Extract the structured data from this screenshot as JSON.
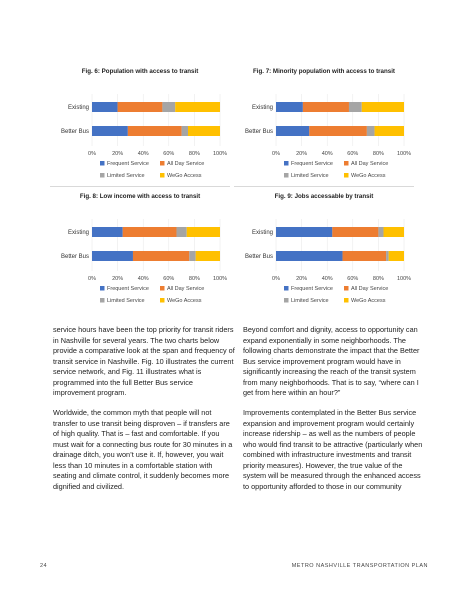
{
  "legend_colors": {
    "Frequent Service": "#4472c4",
    "All Day Service": "#ed7d31",
    "Limited Service": "#a5a5a5",
    "WeGo Access": "#ffc000"
  },
  "chart_data": [
    {
      "type": "bar",
      "stacked": true,
      "orientation": "horizontal",
      "title": "Fig. 6: Population with access to transit",
      "categories": [
        "Existing",
        "Better Bus"
      ],
      "series": [
        {
          "name": "Frequent Service",
          "values": [
            20,
            28
          ]
        },
        {
          "name": "All Day Service",
          "values": [
            35,
            42
          ]
        },
        {
          "name": "Limited Service",
          "values": [
            10,
            5
          ]
        },
        {
          "name": "WeGo Access",
          "values": [
            35,
            25
          ]
        }
      ],
      "xlim": [
        0,
        100
      ],
      "xticks": [
        "0%",
        "20%",
        "40%",
        "60%",
        "80%",
        "100%"
      ],
      "legend": "bottom"
    },
    {
      "type": "bar",
      "stacked": true,
      "orientation": "horizontal",
      "title": "Fig. 7: Minority population with access to transit",
      "categories": [
        "Existing",
        "Better Bus"
      ],
      "series": [
        {
          "name": "Frequent Service",
          "values": [
            21,
            26
          ]
        },
        {
          "name": "All Day Service",
          "values": [
            36,
            45
          ]
        },
        {
          "name": "Limited Service",
          "values": [
            10,
            6
          ]
        },
        {
          "name": "WeGo Access",
          "values": [
            33,
            23
          ]
        }
      ],
      "xlim": [
        0,
        100
      ],
      "xticks": [
        "0%",
        "20%",
        "40%",
        "60%",
        "80%",
        "100%"
      ],
      "legend": "bottom"
    },
    {
      "type": "bar",
      "stacked": true,
      "orientation": "horizontal",
      "title": "Fig. 8: Low income with access to transit",
      "categories": [
        "Existing",
        "Better Bus"
      ],
      "series": [
        {
          "name": "Frequent Service",
          "values": [
            24,
            32
          ]
        },
        {
          "name": "All Day Service",
          "values": [
            42,
            44
          ]
        },
        {
          "name": "Limited Service",
          "values": [
            8,
            5
          ]
        },
        {
          "name": "WeGo Access",
          "values": [
            26,
            19
          ]
        }
      ],
      "xlim": [
        0,
        100
      ],
      "xticks": [
        "0%",
        "20%",
        "40%",
        "60%",
        "80%",
        "100%"
      ],
      "legend": "bottom"
    },
    {
      "type": "bar",
      "stacked": true,
      "orientation": "horizontal",
      "title": "Fig. 9: Jobs accessable by transit",
      "categories": [
        "Existing",
        "Better Bus"
      ],
      "series": [
        {
          "name": "Frequent Service",
          "values": [
            44,
            52
          ]
        },
        {
          "name": "All Day Service",
          "values": [
            36,
            34
          ]
        },
        {
          "name": "Limited Service",
          "values": [
            4,
            2
          ]
        },
        {
          "name": "WeGo Access",
          "values": [
            16,
            12
          ]
        }
      ],
      "xlim": [
        0,
        100
      ],
      "xticks": [
        "0%",
        "20%",
        "40%",
        "60%",
        "80%",
        "100%"
      ],
      "legend": "bottom"
    }
  ],
  "left_column": [
    "service hours have been the top priority for transit riders in Nashville for several years. The two charts below provide a comparative look at the span and frequency of transit service in Nashville. Fig. 10 illustrates the current service network, and Fig. 11 illustrates what is programmed into the full Better Bus service improvement program.",
    "Worldwide, the common myth that people will not transfer to use transit being disproven – if transfers are of high quality. That is – fast and comfortable. If you must wait for a connecting bus route for 30 minutes in a drainage ditch, you won’t use it. If, however, you wait less than 10 minutes in a comfortable station with seating and climate control, it suddenly becomes more dignified and civilized."
  ],
  "right_column": [
    "Beyond comfort and dignity, access to opportunity can expand exponentially in some neighborhoods. The following charts demonstrate the impact that the Better Bus service improvement program would have in significantly increasing the reach of the transit system from many neighborhoods. That is to say, “where can I get from here within an hour?”",
    "Improvements contemplated in the Better Bus service expansion and improvement program would certainly increase ridership – as well as the numbers of people who would find transit to be attractive (particularly when combined with infrastructure investments and transit priority measures). However, the true value of the system will be measured through the enhanced access to opportunity afforded to those in our community"
  ],
  "footer": {
    "page_number": "24",
    "title": "METRO NASHVILLE TRANSPORTATION PLAN"
  }
}
